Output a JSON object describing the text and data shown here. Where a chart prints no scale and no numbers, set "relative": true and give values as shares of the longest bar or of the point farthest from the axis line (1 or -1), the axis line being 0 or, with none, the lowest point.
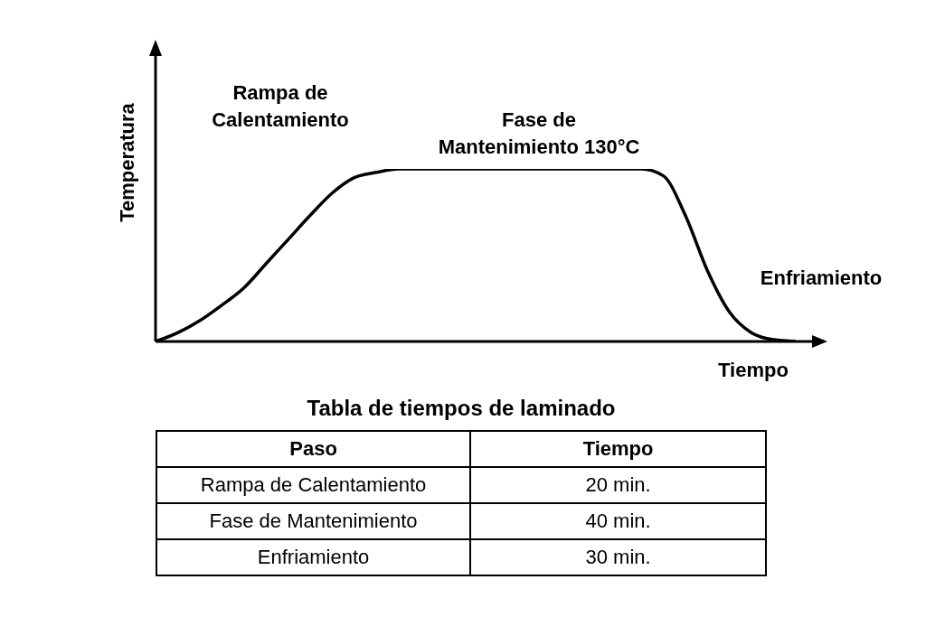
{
  "chart_data": [
    {
      "type": "line",
      "relative": true,
      "xlabel": "Tiempo",
      "ylabel": "Temperatura",
      "categories": [
        null,
        null,
        null,
        null,
        null,
        null,
        null,
        null,
        null,
        null,
        null,
        null,
        null,
        null,
        null,
        null,
        null,
        null,
        null,
        null,
        null,
        null,
        null,
        null,
        null,
        null,
        null,
        null,
        null,
        null
      ],
      "series": [
        {
          "color": "#000000",
          "values": [
            0,
            0.05,
            0.12,
            0.21,
            0.31,
            0.45,
            0.59,
            0.73,
            0.86,
            0.95,
            0.98,
            1,
            1,
            1,
            1,
            1,
            1,
            1,
            1,
            1,
            1,
            1,
            1,
            0.96,
            0.73,
            0.41,
            0.17,
            0.05,
            0.01,
            0
          ]
        }
      ],
      "annotations": [
        "Rampa de\nCalentamiento",
        "Fase de\nMantenimiento 130°C",
        "Enfriamiento"
      ],
      "grid": false,
      "legend": false,
      "marker": "none",
      "line_style": "solid"
    },
    {
      "type": "other",
      "title": "Tabla de tiempos de laminado",
      "annotations": [
        "Paso",
        "Tiempo",
        "Rampa de Calentamiento",
        "20 min.",
        "Fase de Mantenimiento",
        "40 min.",
        "Enfriamiento",
        "30 min."
      ]
    }
  ]
}
